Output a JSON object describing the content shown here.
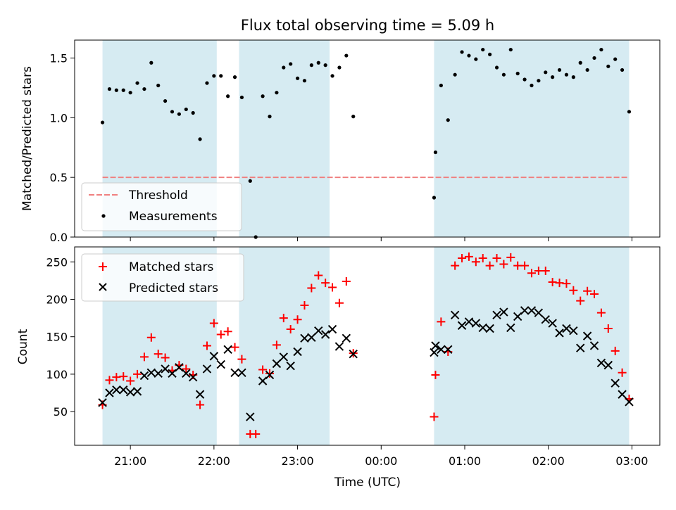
{
  "chart_data": [
    {
      "type": "scatter",
      "title": "Flux total observing time = 5.09 h",
      "xlabel": "",
      "ylabel": "Matched/Predicted stars",
      "xlim": [
        "20:20",
        "03:20"
      ],
      "ylim": [
        0,
        1.65
      ],
      "yticks": [
        0.0,
        0.5,
        1.0,
        1.5
      ],
      "ytick_labels": [
        "0.0",
        "0.5",
        "1.0",
        "1.5"
      ],
      "grid": false,
      "legend": {
        "placement": "lower-left",
        "entries": [
          "Threshold",
          "Measurements"
        ]
      },
      "shaded_intervals": [
        [
          "20:40",
          "22:02"
        ],
        [
          "22:18",
          "23:23"
        ],
        [
          "00:38",
          "02:58"
        ]
      ],
      "threshold": {
        "name": "Threshold",
        "value": 0.5,
        "x_range": [
          "20:40",
          "02:58"
        ],
        "color": "#f08080"
      },
      "series": [
        {
          "name": "Measurements",
          "color": "#000000",
          "points": [
            [
              "20:40",
              0.96
            ],
            [
              "20:45",
              1.24
            ],
            [
              "20:50",
              1.23
            ],
            [
              "20:55",
              1.23
            ],
            [
              "21:00",
              1.21
            ],
            [
              "21:05",
              1.29
            ],
            [
              "21:10",
              1.24
            ],
            [
              "21:15",
              1.46
            ],
            [
              "21:20",
              1.27
            ],
            [
              "21:25",
              1.14
            ],
            [
              "21:30",
              1.05
            ],
            [
              "21:35",
              1.03
            ],
            [
              "21:40",
              1.07
            ],
            [
              "21:45",
              1.04
            ],
            [
              "21:50",
              0.82
            ],
            [
              "21:55",
              1.29
            ],
            [
              "22:00",
              1.35
            ],
            [
              "22:05",
              1.35
            ],
            [
              "22:10",
              1.18
            ],
            [
              "22:15",
              1.34
            ],
            [
              "22:20",
              1.17
            ],
            [
              "22:26",
              0.47
            ],
            [
              "22:30",
              0.0
            ],
            [
              "22:35",
              1.18
            ],
            [
              "22:40",
              1.01
            ],
            [
              "22:45",
              1.21
            ],
            [
              "22:50",
              1.42
            ],
            [
              "22:55",
              1.45
            ],
            [
              "23:00",
              1.33
            ],
            [
              "23:05",
              1.31
            ],
            [
              "23:10",
              1.44
            ],
            [
              "23:15",
              1.46
            ],
            [
              "23:20",
              1.44
            ],
            [
              "23:25",
              1.35
            ],
            [
              "23:30",
              1.42
            ],
            [
              "23:35",
              1.52
            ],
            [
              "23:40",
              1.01
            ],
            [
              "00:38",
              0.33
            ],
            [
              "00:39",
              0.71
            ],
            [
              "00:43",
              1.27
            ],
            [
              "00:48",
              0.98
            ],
            [
              "00:53",
              1.36
            ],
            [
              "00:58",
              1.55
            ],
            [
              "01:03",
              1.52
            ],
            [
              "01:08",
              1.49
            ],
            [
              "01:13",
              1.57
            ],
            [
              "01:18",
              1.53
            ],
            [
              "01:23",
              1.42
            ],
            [
              "01:28",
              1.36
            ],
            [
              "01:33",
              1.57
            ],
            [
              "01:38",
              1.37
            ],
            [
              "01:43",
              1.32
            ],
            [
              "01:48",
              1.27
            ],
            [
              "01:53",
              1.31
            ],
            [
              "01:58",
              1.38
            ],
            [
              "02:03",
              1.34
            ],
            [
              "02:08",
              1.4
            ],
            [
              "02:13",
              1.36
            ],
            [
              "02:18",
              1.34
            ],
            [
              "02:23",
              1.46
            ],
            [
              "02:28",
              1.4
            ],
            [
              "02:33",
              1.5
            ],
            [
              "02:38",
              1.57
            ],
            [
              "02:43",
              1.43
            ],
            [
              "02:48",
              1.49
            ],
            [
              "02:53",
              1.4
            ],
            [
              "02:58",
              1.05
            ]
          ]
        }
      ]
    },
    {
      "type": "scatter",
      "title": "",
      "xlabel": "Time (UTC)",
      "ylabel": "Count",
      "xlim": [
        "20:20",
        "03:20"
      ],
      "ylim": [
        5,
        270
      ],
      "xticks": [
        "21:00",
        "22:00",
        "23:00",
        "00:00",
        "01:00",
        "02:00",
        "03:00"
      ],
      "yticks": [
        50,
        100,
        150,
        200,
        250
      ],
      "ytick_labels": [
        "50",
        "100",
        "150",
        "200",
        "250"
      ],
      "grid": false,
      "legend": {
        "placement": "upper-left",
        "entries": [
          "Matched stars",
          "Predicted stars"
        ]
      },
      "shaded_intervals": [
        [
          "20:40",
          "22:02"
        ],
        [
          "22:18",
          "23:23"
        ],
        [
          "00:38",
          "02:58"
        ]
      ],
      "series": [
        {
          "name": "Matched stars",
          "marker": "plus",
          "color": "#ff0000",
          "points": [
            [
              "20:40",
              59
            ],
            [
              "20:45",
              92
            ],
            [
              "20:50",
              96
            ],
            [
              "20:55",
              97
            ],
            [
              "21:00",
              91
            ],
            [
              "21:05",
              100
            ],
            [
              "21:10",
              123
            ],
            [
              "21:15",
              149
            ],
            [
              "21:20",
              127
            ],
            [
              "21:25",
              122
            ],
            [
              "21:30",
              105
            ],
            [
              "21:35",
              112
            ],
            [
              "21:40",
              107
            ],
            [
              "21:45",
              99
            ],
            [
              "21:50",
              59
            ],
            [
              "21:55",
              138
            ],
            [
              "22:00",
              168
            ],
            [
              "22:05",
              153
            ],
            [
              "22:10",
              157
            ],
            [
              "22:15",
              136
            ],
            [
              "22:20",
              120
            ],
            [
              "22:26",
              20
            ],
            [
              "22:30",
              20
            ],
            [
              "22:35",
              106
            ],
            [
              "22:40",
              101
            ],
            [
              "22:45",
              139
            ],
            [
              "22:50",
              175
            ],
            [
              "22:55",
              160
            ],
            [
              "23:00",
              173
            ],
            [
              "23:05",
              192
            ],
            [
              "23:10",
              215
            ],
            [
              "23:15",
              232
            ],
            [
              "23:20",
              222
            ],
            [
              "23:25",
              216
            ],
            [
              "23:30",
              195
            ],
            [
              "23:35",
              224
            ],
            [
              "23:40",
              128
            ],
            [
              "00:38",
              43
            ],
            [
              "00:39",
              99
            ],
            [
              "00:43",
              170
            ],
            [
              "00:48",
              130
            ],
            [
              "00:53",
              245
            ],
            [
              "00:58",
              255
            ],
            [
              "01:03",
              257
            ],
            [
              "01:08",
              250
            ],
            [
              "01:13",
              255
            ],
            [
              "01:18",
              245
            ],
            [
              "01:23",
              255
            ],
            [
              "01:28",
              247
            ],
            [
              "01:33",
              256
            ],
            [
              "01:38",
              245
            ],
            [
              "01:43",
              245
            ],
            [
              "01:48",
              235
            ],
            [
              "01:53",
              238
            ],
            [
              "01:58",
              238
            ],
            [
              "02:03",
              223
            ],
            [
              "02:08",
              222
            ],
            [
              "02:13",
              221
            ],
            [
              "02:18",
              212
            ],
            [
              "02:23",
              198
            ],
            [
              "02:28",
              211
            ],
            [
              "02:33",
              207
            ],
            [
              "02:38",
              182
            ],
            [
              "02:43",
              161
            ],
            [
              "02:48",
              131
            ],
            [
              "02:53",
              102
            ],
            [
              "02:58",
              67
            ]
          ]
        },
        {
          "name": "Predicted stars",
          "marker": "x",
          "color": "#000000",
          "points": [
            [
              "20:40",
              62
            ],
            [
              "20:45",
              75
            ],
            [
              "20:50",
              79
            ],
            [
              "20:55",
              79
            ],
            [
              "21:00",
              76
            ],
            [
              "21:05",
              77
            ],
            [
              "21:10",
              98
            ],
            [
              "21:15",
              102
            ],
            [
              "21:20",
              101
            ],
            [
              "21:25",
              107
            ],
            [
              "21:30",
              101
            ],
            [
              "21:35",
              109
            ],
            [
              "21:40",
              101
            ],
            [
              "21:45",
              96
            ],
            [
              "21:50",
              73
            ],
            [
              "21:55",
              107
            ],
            [
              "22:00",
              124
            ],
            [
              "22:05",
              113
            ],
            [
              "22:10",
              133
            ],
            [
              "22:15",
              102
            ],
            [
              "22:20",
              102
            ],
            [
              "22:26",
              43
            ],
            [
              "22:35",
              91
            ],
            [
              "22:40",
              99
            ],
            [
              "22:45",
              114
            ],
            [
              "22:50",
              123
            ],
            [
              "22:55",
              111
            ],
            [
              "23:00",
              130
            ],
            [
              "23:05",
              148
            ],
            [
              "23:10",
              149
            ],
            [
              "23:15",
              158
            ],
            [
              "23:20",
              153
            ],
            [
              "23:25",
              160
            ],
            [
              "23:30",
              137
            ],
            [
              "23:35",
              148
            ],
            [
              "23:40",
              127
            ],
            [
              "00:38",
              129
            ],
            [
              "00:39",
              138
            ],
            [
              "00:43",
              133
            ],
            [
              "00:48",
              133
            ],
            [
              "00:53",
              179
            ],
            [
              "00:58",
              165
            ],
            [
              "01:03",
              170
            ],
            [
              "01:08",
              168
            ],
            [
              "01:13",
              162
            ],
            [
              "01:18",
              161
            ],
            [
              "01:23",
              179
            ],
            [
              "01:28",
              183
            ],
            [
              "01:33",
              162
            ],
            [
              "01:38",
              177
            ],
            [
              "01:43",
              185
            ],
            [
              "01:48",
              185
            ],
            [
              "01:53",
              182
            ],
            [
              "01:58",
              173
            ],
            [
              "02:03",
              168
            ],
            [
              "02:08",
              155
            ],
            [
              "02:13",
              161
            ],
            [
              "02:18",
              158
            ],
            [
              "02:23",
              135
            ],
            [
              "02:28",
              151
            ],
            [
              "02:33",
              138
            ],
            [
              "02:38",
              115
            ],
            [
              "02:43",
              112
            ],
            [
              "02:48",
              88
            ],
            [
              "02:53",
              73
            ],
            [
              "02:58",
              63
            ]
          ]
        }
      ]
    }
  ],
  "colors": {
    "shade": "#add8e6",
    "threshold": "#f08080",
    "matched": "#ff0000",
    "predicted": "#000000",
    "measurement": "#000000"
  }
}
